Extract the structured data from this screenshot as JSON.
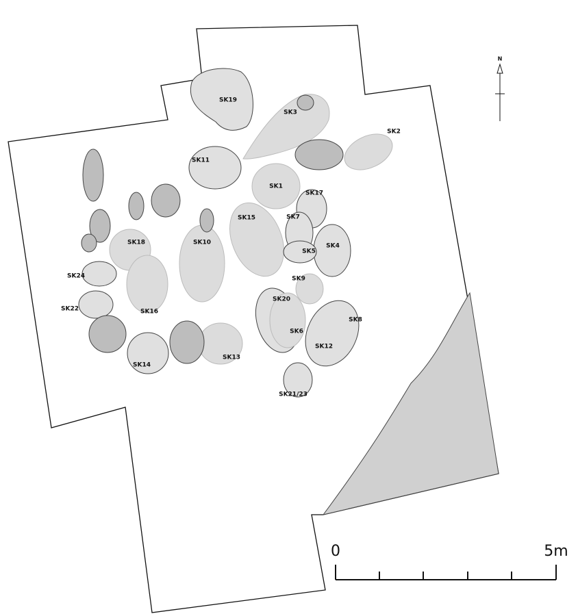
{
  "labels": [
    "SK19",
    "SK3",
    "SK2",
    "SK11",
    "SK1",
    "SK17",
    "SK15",
    "SK7",
    "SK18",
    "SK10",
    "SK4",
    "SK5",
    "SK24",
    "SK9",
    "SK20",
    "SK22",
    "SK16",
    "SK8",
    "SK6",
    "SK12",
    "SK13",
    "SK14",
    "SK21/23"
  ],
  "north": "N",
  "scale": {
    "start": "0",
    "end": "5m"
  }
}
